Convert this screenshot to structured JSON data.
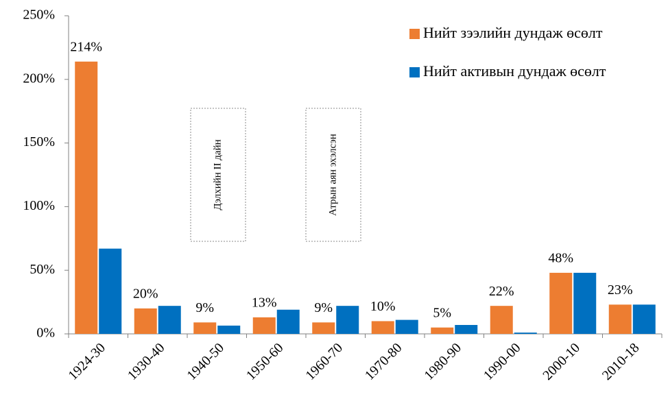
{
  "chart_data": {
    "type": "bar",
    "categories": [
      "1924-30",
      "1930-40",
      "1940-50",
      "1950-60",
      "1960-70",
      "1970-80",
      "1980-90",
      "1990-00",
      "2000-10",
      "2010-18"
    ],
    "series": [
      {
        "name": "Нийт зээлийн дундаж өсөлт",
        "color": "#ED7D31",
        "values": [
          214,
          20,
          9,
          13,
          9,
          10,
          5,
          22,
          48,
          23
        ],
        "value_labels": [
          "214%",
          "20%",
          "9%",
          "13%",
          "9%",
          "10%",
          "5%",
          "22%",
          "48%",
          "23%"
        ]
      },
      {
        "name": "Нийт активын дундаж өсөлт",
        "color": "#0070C0",
        "values": [
          67,
          22,
          6.5,
          19,
          22,
          11,
          7,
          1,
          48,
          23
        ]
      }
    ],
    "ylim": [
      0,
      250
    ],
    "yticks": [
      {
        "value": 0,
        "label": "0%"
      },
      {
        "value": 50,
        "label": "50%"
      },
      {
        "value": 100,
        "label": "100%"
      },
      {
        "value": 150,
        "label": "150%"
      },
      {
        "value": 200,
        "label": "200%"
      },
      {
        "value": 250,
        "label": "250%"
      }
    ],
    "grid": false,
    "legend": "upper right",
    "annotations": [
      "Дэлхийн II дайн",
      "Атрын аян эхэлсэн"
    ]
  }
}
